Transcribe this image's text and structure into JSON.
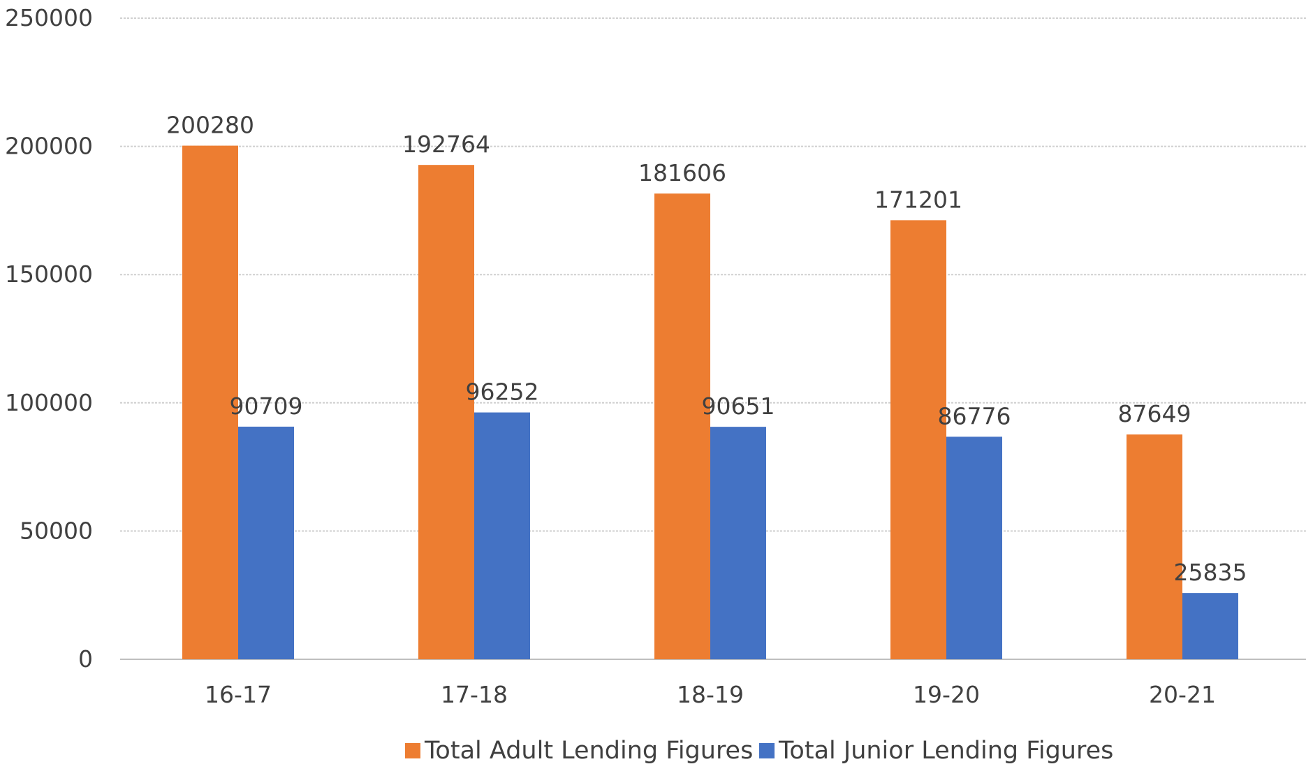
{
  "chart_data": {
    "type": "bar",
    "categories": [
      "16-17",
      "17-18",
      "18-19",
      "19-20",
      "20-21"
    ],
    "series": [
      {
        "name": "Total Adult Lending Figures",
        "color": "#ED7D31",
        "values": [
          200280,
          192764,
          181606,
          171201,
          87649
        ]
      },
      {
        "name": "Total Junior Lending Figures",
        "color": "#4472C4",
        "values": [
          90709,
          96252,
          90651,
          86776,
          25835
        ]
      }
    ],
    "yticks": [
      0,
      50000,
      100000,
      150000,
      200000,
      250000
    ],
    "ylim": [
      0,
      250000
    ],
    "grid": true,
    "legend_position": "bottom",
    "title": "",
    "xlabel": "",
    "ylabel": ""
  }
}
